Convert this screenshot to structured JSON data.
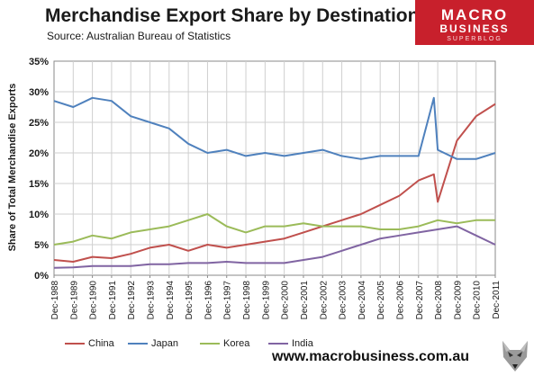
{
  "title": "Merchandise Export Share by Destination",
  "subtitle": "Source:  Australian Bureau of Statistics",
  "logo": {
    "line1": "MACRO",
    "line2": "BUSINESS",
    "line3": "SUPERBLOG"
  },
  "website": "www.macrobusiness.com.au",
  "chart_data": {
    "type": "line",
    "title": "Merchandise Export Share by Destination",
    "xlabel": "",
    "ylabel": "Share of Total Merchandise Exports",
    "ylim": [
      0,
      35
    ],
    "yticks": [
      "0%",
      "5%",
      "10%",
      "15%",
      "20%",
      "25%",
      "30%",
      "35%"
    ],
    "xticks": [
      "Dec-1988",
      "Dec-1989",
      "Dec-1990",
      "Dec-1991",
      "Dec-1992",
      "Dec-1993",
      "Dec-1994",
      "Dec-1995",
      "Dec-1996",
      "Dec-1997",
      "Dec-1998",
      "Dec-1999",
      "Dec-2000",
      "Dec-2001",
      "Dec-2002",
      "Dec-2003",
      "Dec-2004",
      "Dec-2005",
      "Dec-2006",
      "Dec-2007",
      "Dec-2008",
      "Dec-2009",
      "Dec-2010",
      "Dec-2011"
    ],
    "grid": true,
    "legend": "bottom",
    "series": [
      {
        "name": "China",
        "color": "#c0504d",
        "x": [
          1988.0,
          1989.0,
          1990.0,
          1991.0,
          1992.0,
          1993.0,
          1994.0,
          1995.0,
          1996.0,
          1997.0,
          1998.0,
          1999.0,
          2000.0,
          2001.0,
          2002.0,
          2003.0,
          2004.0,
          2005.0,
          2006.0,
          2007.0,
          2007.8,
          2008.0,
          2009.0,
          2010.0,
          2011.0
        ],
        "values": [
          2.5,
          2.2,
          3.0,
          2.8,
          3.5,
          4.5,
          5.0,
          4.0,
          5.0,
          4.5,
          5.0,
          5.5,
          6.0,
          7.0,
          8.0,
          9.0,
          10.0,
          11.5,
          13.0,
          15.5,
          16.5,
          12.0,
          22.0,
          26.0,
          28.0
        ]
      },
      {
        "name": "Japan",
        "color": "#4f81bd",
        "x": [
          1988.0,
          1989.0,
          1990.0,
          1991.0,
          1992.0,
          1993.0,
          1994.0,
          1995.0,
          1996.0,
          1997.0,
          1998.0,
          1999.0,
          2000.0,
          2001.0,
          2002.0,
          2003.0,
          2004.0,
          2005.0,
          2006.0,
          2007.0,
          2007.8,
          2008.0,
          2009.0,
          2010.0,
          2011.0
        ],
        "values": [
          28.5,
          27.5,
          29.0,
          28.5,
          26.0,
          25.0,
          24.0,
          21.5,
          20.0,
          20.5,
          19.5,
          20.0,
          19.5,
          20.0,
          20.5,
          19.5,
          19.0,
          19.5,
          19.5,
          19.5,
          29.0,
          20.5,
          19.0,
          19.0,
          20.0
        ]
      },
      {
        "name": "Korea",
        "color": "#9bbb59",
        "x": [
          1988.0,
          1989.0,
          1990.0,
          1991.0,
          1992.0,
          1993.0,
          1994.0,
          1995.0,
          1996.0,
          1997.0,
          1998.0,
          1999.0,
          2000.0,
          2001.0,
          2002.0,
          2003.0,
          2004.0,
          2005.0,
          2006.0,
          2007.0,
          2008.0,
          2009.0,
          2010.0,
          2011.0
        ],
        "values": [
          5.0,
          5.5,
          6.5,
          6.0,
          7.0,
          7.5,
          8.0,
          9.0,
          10.0,
          8.0,
          7.0,
          8.0,
          8.0,
          8.5,
          8.0,
          8.0,
          8.0,
          7.5,
          7.5,
          8.0,
          9.0,
          8.5,
          9.0,
          9.0
        ]
      },
      {
        "name": "India",
        "color": "#8064a2",
        "x": [
          1988.0,
          1989.0,
          1990.0,
          1991.0,
          1992.0,
          1993.0,
          1994.0,
          1995.0,
          1996.0,
          1997.0,
          1998.0,
          1999.0,
          2000.0,
          2001.0,
          2002.0,
          2003.0,
          2004.0,
          2005.0,
          2006.0,
          2007.0,
          2008.0,
          2009.0,
          2010.0,
          2011.0
        ],
        "values": [
          1.2,
          1.3,
          1.5,
          1.5,
          1.5,
          1.8,
          1.8,
          2.0,
          2.0,
          2.2,
          2.0,
          2.0,
          2.0,
          2.5,
          3.0,
          4.0,
          5.0,
          6.0,
          6.5,
          7.0,
          7.5,
          8.0,
          6.5,
          5.0
        ]
      }
    ]
  }
}
